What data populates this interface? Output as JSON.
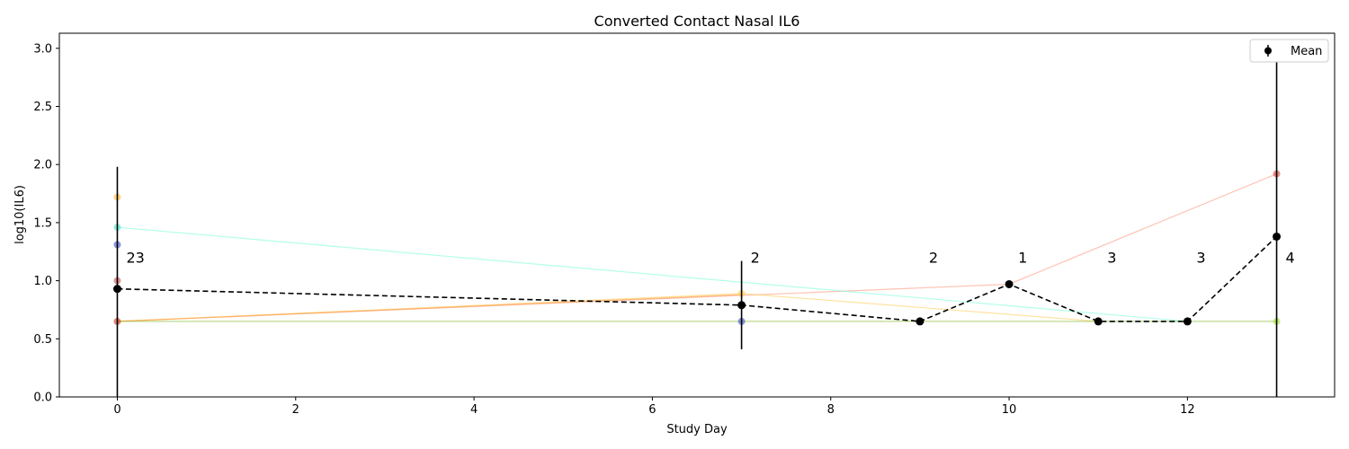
{
  "chart_data": {
    "type": "line",
    "title": "Converted Contact Nasal IL6",
    "xlabel": "Study Day",
    "ylabel": "log10(IL6)",
    "xlim": [
      -0.65,
      13.65
    ],
    "ylim": [
      0.0,
      3.13
    ],
    "x_ticks": [
      0,
      2,
      4,
      6,
      8,
      10,
      12
    ],
    "y_ticks": [
      0.0,
      0.5,
      1.0,
      1.5,
      2.0,
      2.5,
      3.0
    ],
    "x_tick_labels": [
      "0",
      "2",
      "4",
      "6",
      "8",
      "10",
      "12"
    ],
    "y_tick_labels": [
      "0.0",
      "0.5",
      "1.0",
      "1.5",
      "2.0",
      "2.5",
      "3.0"
    ],
    "grid": false,
    "legend": {
      "placement": "top-right",
      "entries": [
        "Mean"
      ]
    },
    "subject_series": [
      {
        "color": "#ff9a80",
        "points": [
          [
            0,
            0.65
          ],
          [
            10,
            0.97
          ],
          [
            13,
            1.92
          ]
        ]
      },
      {
        "color": "#80ffdc",
        "points": [
          [
            0,
            1.46
          ],
          [
            12,
            0.65
          ]
        ]
      },
      {
        "color": "#ffd060",
        "points": [
          [
            0,
            0.65
          ],
          [
            7,
            0.89
          ],
          [
            11,
            0.65
          ]
        ]
      },
      {
        "color": "#ffa040",
        "points": [
          [
            0,
            0.65
          ],
          [
            7,
            0.88
          ]
        ]
      },
      {
        "color": "#90c040",
        "points": [
          [
            0,
            0.65
          ],
          [
            13,
            0.65
          ]
        ]
      }
    ],
    "subject_points": [
      {
        "x": 0,
        "y": 1.72,
        "color": "#ffb020"
      },
      {
        "x": 0,
        "y": 1.46,
        "color": "#40e0c0"
      },
      {
        "x": 0,
        "y": 1.31,
        "color": "#3040c0"
      },
      {
        "x": 0,
        "y": 1.0,
        "color": "#c04040"
      },
      {
        "x": 0,
        "y": 0.65,
        "color": "#c02000"
      },
      {
        "x": 7,
        "y": 0.89,
        "color": "#ffd040"
      },
      {
        "x": 7,
        "y": 0.65,
        "color": "#3040c0"
      },
      {
        "x": 13,
        "y": 1.92,
        "color": "#d03020"
      },
      {
        "x": 13,
        "y": 0.65,
        "color": "#a0e020"
      }
    ],
    "mean_series": {
      "name": "Mean",
      "color": "#000000",
      "x": [
        0,
        7,
        9,
        10,
        11,
        12,
        13
      ],
      "y": [
        0.93,
        0.79,
        0.65,
        0.97,
        0.65,
        0.65,
        1.38
      ],
      "err_low": [
        0.0,
        0.41,
        null,
        null,
        null,
        null,
        0.0
      ],
      "err_high": [
        1.98,
        1.17,
        null,
        null,
        null,
        null,
        2.97
      ]
    },
    "counts": [
      {
        "x": 0,
        "label": "23"
      },
      {
        "x": 7,
        "label": "2"
      },
      {
        "x": 9,
        "label": "2"
      },
      {
        "x": 10,
        "label": "1"
      },
      {
        "x": 11,
        "label": "3"
      },
      {
        "x": 12,
        "label": "3"
      },
      {
        "x": 13,
        "label": "4"
      }
    ],
    "count_label_y": 1.2
  }
}
